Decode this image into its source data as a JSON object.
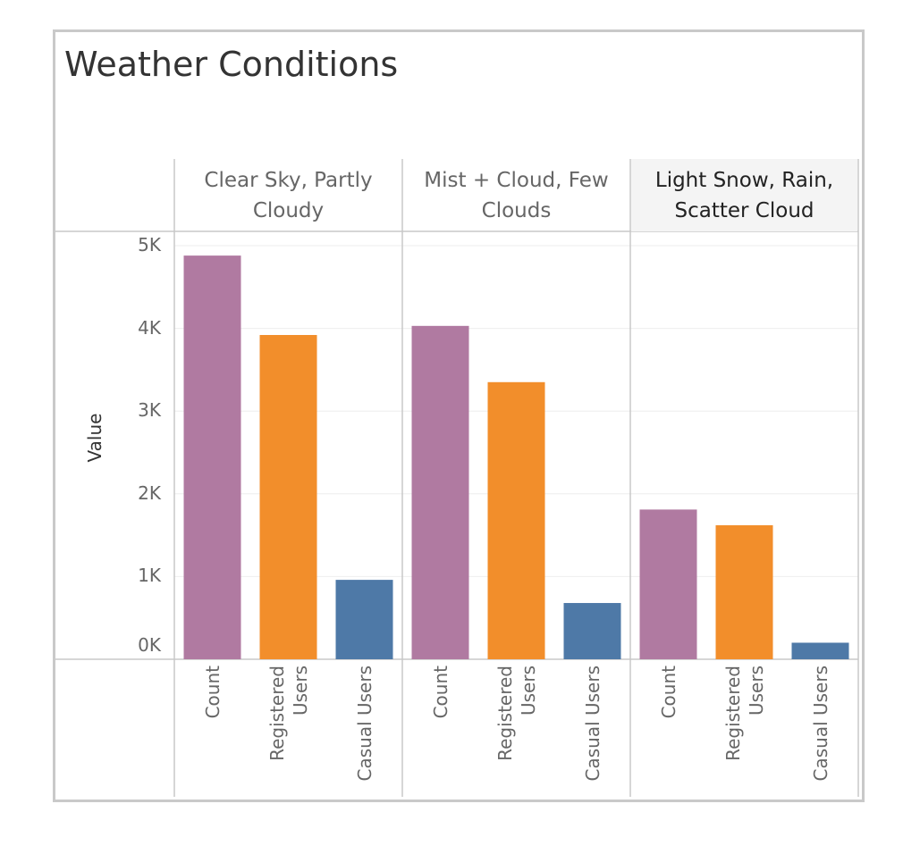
{
  "chart_data": {
    "type": "bar",
    "title": "Weather Conditions",
    "ylabel": "Value",
    "ylim": [
      0,
      5000
    ],
    "y_ticks": [
      "0K",
      "1K",
      "2K",
      "3K",
      "4K",
      "5K"
    ],
    "y_tick_values": [
      0,
      1000,
      2000,
      3000,
      4000,
      5000
    ],
    "measures": [
      {
        "name": "Count",
        "label_lines": [
          "Count"
        ],
        "color": "#b07aa1"
      },
      {
        "name": "Registered Users",
        "label_lines": [
          "Registered",
          "Users"
        ],
        "color": "#f28e2b"
      },
      {
        "name": "Casual Users",
        "label_lines": [
          "Casual Users"
        ],
        "color": "#4e79a7"
      }
    ],
    "panels": [
      {
        "name": "Clear Sky, Partly Cloudy",
        "header_lines": [
          "Clear Sky, Partly",
          "Cloudy"
        ],
        "highlighted": false,
        "values": [
          4880,
          3920,
          960
        ]
      },
      {
        "name": "Mist + Cloud, Few Clouds",
        "header_lines": [
          "Mist + Cloud, Few",
          "Clouds"
        ],
        "highlighted": false,
        "values": [
          4030,
          3350,
          680
        ]
      },
      {
        "name": "Light Snow, Rain, Scatter Cloud",
        "header_lines": [
          "Light Snow, Rain,",
          "Scatter Cloud"
        ],
        "highlighted": true,
        "values": [
          1810,
          1620,
          200
        ]
      }
    ],
    "grid": true,
    "legend": "none"
  }
}
